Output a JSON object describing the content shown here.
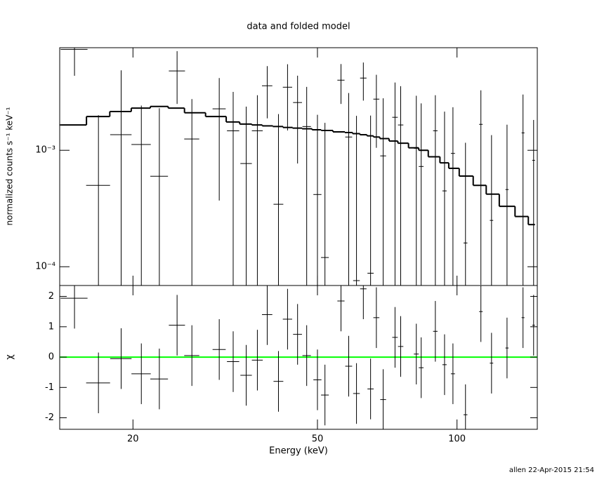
{
  "chart_data": [
    {
      "type": "errorbar",
      "title": "data and folded model",
      "ylabel": "normalized counts s⁻¹ keV⁻¹",
      "log_x": true,
      "log_y": true,
      "xlim": [
        13.9,
        149
      ],
      "ylim": [
        6.9e-05,
        0.0076
      ],
      "yticks": [
        {
          "value": 0.001,
          "label": "10⁻³"
        },
        {
          "value": 0.0001,
          "label": "10⁻⁴"
        }
      ],
      "color": "#000000",
      "x": [
        14.96,
        16.85,
        18.86,
        20.85,
        22.8,
        24.9,
        26.8,
        30.7,
        32.9,
        35.1,
        37.1,
        38.96,
        41.2,
        43.1,
        45.3,
        47.4,
        50,
        51.9,
        56.2,
        58.4,
        60.7,
        62.8,
        65.1,
        67,
        69.3,
        73.5,
        75.6,
        81.7,
        83.7,
        89.8,
        94,
        98,
        104.3,
        112.6,
        118.7,
        128.2,
        138.8,
        146.3
      ],
      "xerr": 1,
      "values": [
        0.00736,
        0.0005,
        0.00136,
        0.00112,
        0.000598,
        0.0048,
        0.00125,
        0.00227,
        0.00147,
        0.000769,
        0.00147,
        0.00358,
        0.000344,
        0.00348,
        0.00257,
        0.0016,
        0.000417,
        0.00012,
        0.004,
        0.0013,
        7.6e-05,
        0.00417,
        8.8e-05,
        0.00275,
        0.000895,
        0.00192,
        0.00165,
        0.00104,
        0.000726,
        0.00147,
        0.000448,
        0.00094,
        0.00016,
        0.00167,
        0.00025,
        0.00046,
        0.00141,
        0.00082
      ],
      "yerr": [
        0.003,
        0.0015,
        0.0035,
        0.0013,
        0.0017,
        0.0023,
        0.0015,
        0.0019,
        0.0017,
        0.0016,
        0.0015,
        0.0017,
        0.0017,
        0.002,
        0.0018,
        0.0019,
        0.0016,
        0.0016,
        0.0015,
        0.0018,
        0.0019,
        0.0015,
        0.0019,
        0.0017,
        0.0019,
        0.0019,
        0.0019,
        0.0019,
        0.0018,
        0.0015,
        0.0017,
        0.0014,
        0.001,
        0.0016,
        0.0011,
        0.0012,
        0.0016,
        0.001
      ],
      "model_values": [
        0.00165,
        0.00195,
        0.00215,
        0.0023,
        0.00238,
        0.0023,
        0.0021,
        0.00195,
        0.00175,
        0.00168,
        0.00165,
        0.00162,
        0.0016,
        0.00157,
        0.00155,
        0.00153,
        0.0015,
        0.00148,
        0.00144,
        0.00142,
        0.00139,
        0.00136,
        0.00133,
        0.0013,
        0.00126,
        0.0012,
        0.00115,
        0.00105,
        0.001,
        0.00088,
        0.00078,
        0.0007,
        0.0006,
        0.0005,
        0.00042,
        0.00033,
        0.00027,
        0.00023
      ]
    },
    {
      "type": "residual",
      "xlabel": "Energy (keV)",
      "ylabel": "χ",
      "ylim": [
        -2.38,
        2.36
      ],
      "yticks": [
        -2,
        -1,
        0,
        1,
        2
      ],
      "xticks": [
        20,
        50,
        100
      ],
      "color": "#000000",
      "zero_color": "#00ff00",
      "values": [
        1.94,
        -0.85,
        -0.05,
        -0.55,
        -0.72,
        1.05,
        0.05,
        0.25,
        -0.15,
        -0.6,
        -0.1,
        1.4,
        -0.8,
        1.25,
        0.75,
        0.05,
        -0.75,
        -1.25,
        1.85,
        -0.3,
        -1.2,
        2.25,
        -1.05,
        1.3,
        -1.4,
        0.65,
        0.35,
        0.1,
        -0.35,
        0.85,
        -0.25,
        -0.55,
        -1.9,
        1.5,
        -0.2,
        0.3,
        1.3,
        1.05
      ],
      "err": 1
    }
  ],
  "footer": "allen 22-Apr-2015 21:54"
}
